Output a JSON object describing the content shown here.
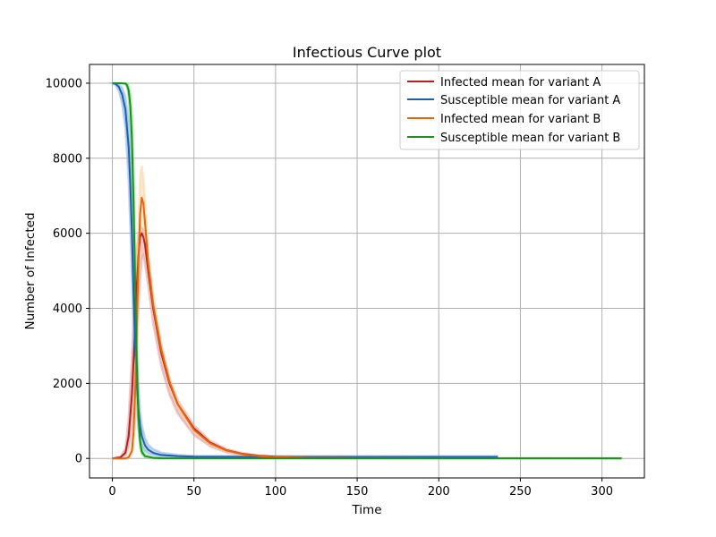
{
  "chart_data": {
    "type": "line",
    "title": "Infectious Curve plot",
    "xlabel": "Time",
    "ylabel": "Number of Infected",
    "xlim": [
      -14,
      326
    ],
    "ylim": [
      -520,
      10500
    ],
    "xticks": [
      0,
      50,
      100,
      150,
      200,
      250,
      300
    ],
    "yticks": [
      0,
      2000,
      4000,
      6000,
      8000,
      10000
    ],
    "grid": true,
    "legend_position": "top-right",
    "series": [
      {
        "name": "Infected mean for variant A",
        "color": "#b22222",
        "band_color": "#e6a0a0",
        "x": [
          0,
          5,
          8,
          10,
          12,
          14,
          15,
          16,
          17,
          18,
          19,
          20,
          22,
          25,
          30,
          35,
          40,
          50,
          60,
          70,
          80,
          90,
          100,
          120,
          150,
          200,
          236
        ],
        "y": [
          0,
          30,
          150,
          600,
          1700,
          3500,
          4600,
          5400,
          5900,
          6000,
          5900,
          5700,
          5000,
          4000,
          2800,
          2000,
          1450,
          800,
          420,
          220,
          120,
          70,
          45,
          30,
          25,
          22,
          22
        ],
        "lower": [
          0,
          20,
          80,
          300,
          900,
          2000,
          3000,
          4000,
          4800,
          5300,
          5400,
          5200,
          4600,
          3600,
          2450,
          1700,
          1200,
          620,
          320,
          160,
          80,
          40,
          20,
          10,
          5,
          3,
          3
        ],
        "upper": [
          0,
          50,
          260,
          1100,
          2700,
          4700,
          5600,
          6000,
          6100,
          6150,
          6100,
          5950,
          5300,
          4200,
          3000,
          2150,
          1550,
          880,
          470,
          250,
          140,
          80,
          55,
          40,
          35,
          35,
          35
        ]
      },
      {
        "name": "Susceptible mean for variant A",
        "color": "#1f5fa8",
        "band_color": "#8fb8e6",
        "x": [
          0,
          2,
          4,
          6,
          8,
          10,
          11,
          12,
          13,
          14,
          15,
          16,
          17,
          18,
          20,
          22,
          25,
          30,
          40,
          50,
          100,
          150,
          200,
          236
        ],
        "y": [
          10000,
          9980,
          9900,
          9700,
          9300,
          8300,
          7300,
          6000,
          4400,
          3000,
          2000,
          1300,
          850,
          600,
          350,
          230,
          150,
          90,
          60,
          45,
          40,
          40,
          40,
          40
        ],
        "lower": [
          10000,
          9950,
          9800,
          9450,
          8800,
          7400,
          6200,
          4800,
          3300,
          2100,
          1300,
          800,
          500,
          350,
          200,
          130,
          90,
          55,
          35,
          30,
          25,
          25,
          25,
          25
        ],
        "upper": [
          10000,
          10000,
          9970,
          9880,
          9650,
          9000,
          8200,
          7000,
          5500,
          4000,
          2800,
          1900,
          1250,
          900,
          550,
          360,
          250,
          150,
          95,
          70,
          60,
          60,
          60,
          60
        ]
      },
      {
        "name": "Infected mean for variant B",
        "color": "#e8650a",
        "band_color": "#f7d7a8",
        "x": [
          0,
          8,
          10,
          12,
          13,
          14,
          15,
          16,
          17,
          18,
          19,
          20,
          22,
          25,
          30,
          35,
          40,
          50,
          60,
          70,
          80,
          90,
          100,
          120,
          150,
          200,
          312
        ],
        "y": [
          0,
          0,
          30,
          200,
          700,
          1800,
          3500,
          5200,
          6500,
          6950,
          6800,
          6300,
          5200,
          4100,
          2900,
          2050,
          1450,
          760,
          400,
          210,
          110,
          60,
          35,
          15,
          8,
          5,
          3
        ],
        "lower": [
          0,
          0,
          20,
          120,
          400,
          1100,
          2500,
          4300,
          5800,
          6500,
          6400,
          6000,
          4950,
          3900,
          2750,
          1950,
          1380,
          710,
          370,
          190,
          95,
          50,
          28,
          10,
          5,
          3,
          2
        ],
        "upper": [
          0,
          0,
          50,
          350,
          1100,
          2700,
          4600,
          6300,
          7500,
          7800,
          7500,
          6900,
          5600,
          4350,
          3050,
          2150,
          1530,
          810,
          430,
          230,
          125,
          70,
          45,
          20,
          12,
          8,
          5
        ]
      },
      {
        "name": "Susceptible mean for variant B",
        "color": "#1f8f1f",
        "band_color": "#6fdc6f",
        "x": [
          0,
          5,
          8,
          9,
          10,
          11,
          12,
          13,
          14,
          15,
          16,
          17,
          18,
          20,
          25,
          30,
          50,
          100,
          200,
          312
        ],
        "y": [
          10000,
          10000,
          9990,
          9950,
          9800,
          9400,
          8500,
          6800,
          4600,
          2500,
          1100,
          450,
          180,
          60,
          15,
          5,
          3,
          3,
          3,
          3
        ],
        "lower": [
          10000,
          10000,
          9980,
          9900,
          9650,
          9050,
          7900,
          6000,
          3800,
          1900,
          800,
          300,
          110,
          35,
          8,
          3,
          2,
          2,
          2,
          2
        ],
        "upper": [
          10000,
          10000,
          10000,
          9990,
          9920,
          9700,
          9100,
          7600,
          5400,
          3200,
          1500,
          650,
          280,
          90,
          25,
          10,
          5,
          5,
          5,
          5
        ]
      }
    ]
  }
}
